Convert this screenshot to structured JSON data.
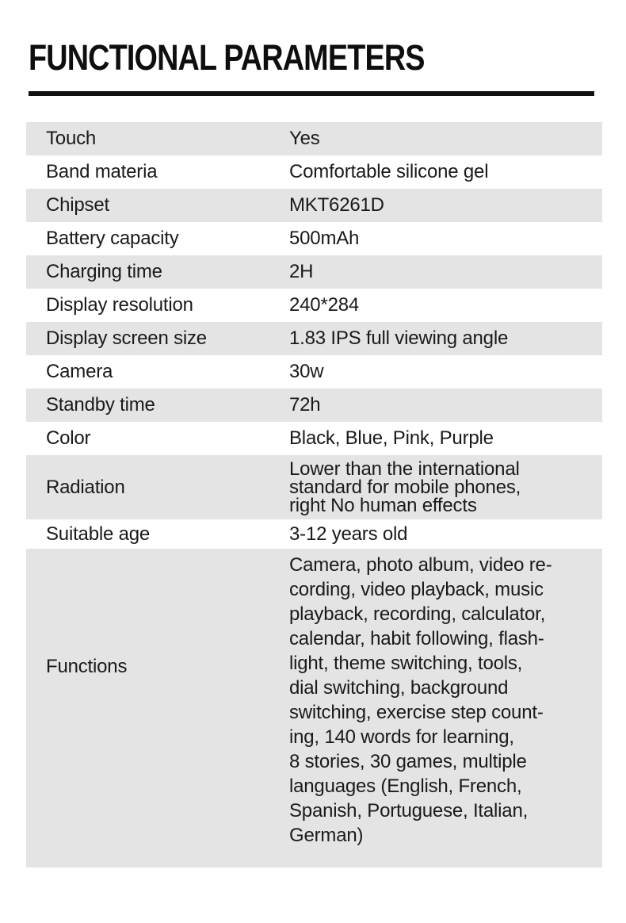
{
  "page_title": "FUNCTIONAL PARAMETERS",
  "colors": {
    "background": "#ffffff",
    "row_shade": "#e4e4e4",
    "text": "#1a1a1a",
    "rule": "#111111"
  },
  "table": {
    "rows": [
      {
        "label": "Touch",
        "value": "Yes"
      },
      {
        "label": "Band materia",
        "value": "Comfortable silicone gel"
      },
      {
        "label": "Chipset",
        "value": "MKT6261D"
      },
      {
        "label": "Battery capacity",
        "value": "500mAh"
      },
      {
        "label": "Charging time",
        "value": "2H"
      },
      {
        "label": "Display resolution",
        "value": "240*284"
      },
      {
        "label": "Display screen size",
        "value": "1.83 IPS full viewing angle"
      },
      {
        "label": "Camera",
        "value": "30w"
      },
      {
        "label": "Standby time",
        "value": "72h"
      },
      {
        "label": "Color",
        "value": "Black, Blue, Pink, Purple"
      },
      {
        "label": "Radiation",
        "value_lines": [
          "Lower than the international",
          "standard for mobile phones,",
          "right No human effects"
        ]
      },
      {
        "label": "Suitable age",
        "value": "3-12 years old"
      },
      {
        "label": "Functions",
        "value_lines": [
          "Camera, photo album, video re-",
          "cording, video playback, music",
          "playback, recording, calculator,",
          "calendar, habit following, flash-",
          "light, theme switching, tools,",
          "dial switching, background",
          "switching, exercise step count-",
          "ing, 140 words for learning,",
          "8 stories, 30 games, multiple",
          "languages (English, French,",
          "Spanish, Portuguese, Italian,",
          "German)"
        ]
      }
    ]
  }
}
